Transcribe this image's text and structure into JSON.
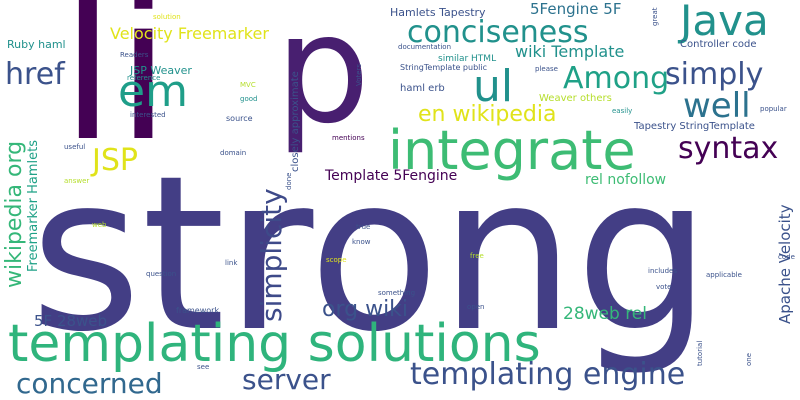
{
  "palette": {
    "deep_purple": "#440154",
    "indigo": "#3b528b",
    "dark_blue": "#31688e",
    "teal": "#21918c",
    "teal_green": "#1fa187",
    "green": "#35b779",
    "light_green": "#6ece58",
    "lime": "#b5de2b",
    "yellow": "#e0e31a"
  },
  "words": {
    "strong": "strong",
    "li": "li",
    "p": "p",
    "templating_solutions": "templating solutions",
    "integrate": "integrate",
    "java": "Java",
    "ul": "ul",
    "em": "em",
    "href": "href",
    "among": "Among",
    "conciseness": "conciseness",
    "simply": "simply",
    "well": "well",
    "syntax": "syntax",
    "jsp": "JSP",
    "templating_engine": "templating engine",
    "server": "server",
    "concerned": "concerned",
    "simplicity": "simplicity",
    "wikipedia_org": "wikipedia org",
    "en_wikipedia": "en wikipedia",
    "org_wiki": "org wiki",
    "5f_28web_rel": "28web rel",
    "5f_28web": "5F 28web",
    "apache_velocity": "Apache Velocity",
    "velocity_freemarker": "Velocity Freemarker",
    "wiki_template": "wiki Template",
    "5fengine_5f": "5Fengine 5F",
    "hamlets_tapestry": "Hamlets Tapestry",
    "template_5fengine": "Template 5Fengine",
    "rel_nofollow": "rel nofollow",
    "freemarker_hamlets": "Freemarker Hamlets",
    "ruby_haml": "Ruby haml",
    "jsp_weaver": "JSP Weaver",
    "controller_code": "Controller code",
    "tapestry_stringtemplate": "Tapestry StringTemplate",
    "haml_erb": "haml erb",
    "similar_html": "similar HTML",
    "weaver_others": "Weaver others",
    "stringtemplate_public": "StringTemplate public",
    "closely_approximate": "closely approximate",
    "solution": "solution",
    "readers": "Readers",
    "reference": "reference",
    "documentation": "documentation",
    "voters": "Voters",
    "please": "please",
    "mvc": "MVC",
    "good": "good",
    "interested": "interested",
    "source": "source",
    "easily": "easily",
    "popular": "popular",
    "mentions": "mentions",
    "useful": "useful",
    "domain": "domain",
    "answer": "answer",
    "true": "true",
    "know": "know",
    "web": "web",
    "free": "free",
    "scope": "scope",
    "link": "link",
    "question": "question",
    "something": "something",
    "includes": "includes",
    "applicable": "applicable",
    "vote": "vote",
    "code": "code",
    "framework": "framework",
    "open": "open",
    "tutorial": "tutorial",
    "one": "one",
    "see": "see",
    "great": "great",
    "done": "done"
  }
}
